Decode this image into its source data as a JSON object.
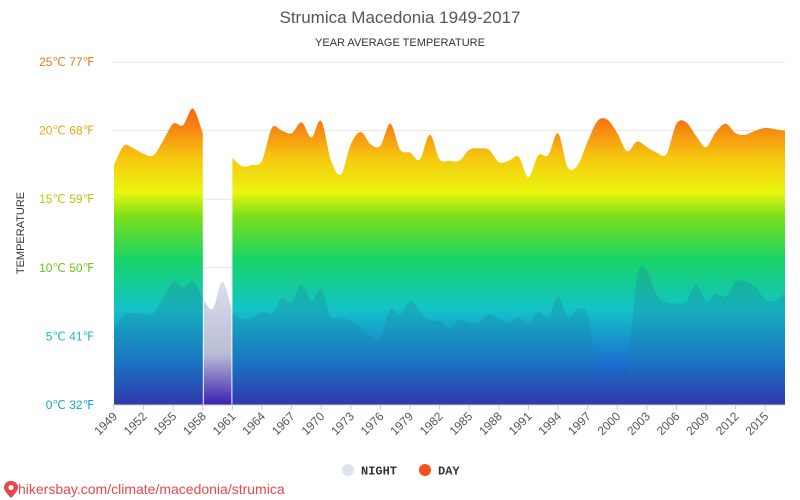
{
  "chart_data": {
    "type": "area",
    "title": "Strumica Macedonia 1949-2017",
    "subtitle": "YEAR AVERAGE TEMPERATURE",
    "ylabel": "TEMPERATURE",
    "ylim": [
      0,
      25
    ],
    "y_ticks": [
      {
        "value": 0,
        "label": "0℃ 32℉",
        "color": "#1aa3c9"
      },
      {
        "value": 5,
        "label": "5℃ 41℉",
        "color": "#1dbfb0"
      },
      {
        "value": 10,
        "label": "10℃ 50℉",
        "color": "#6cc61b"
      },
      {
        "value": 15,
        "label": "15℃ 59℉",
        "color": "#b8c40e"
      },
      {
        "value": 20,
        "label": "20℃ 68℉",
        "color": "#e8a612"
      },
      {
        "value": 25,
        "label": "25℃ 77℉",
        "color": "#f07a18"
      }
    ],
    "x_ticks": [
      "1949",
      "1952",
      "1955",
      "1958",
      "1961",
      "1964",
      "1967",
      "1970",
      "1973",
      "1976",
      "1979",
      "1982",
      "1985",
      "1988",
      "1991",
      "1994",
      "1997",
      "2000",
      "2003",
      "2006",
      "2009",
      "2012",
      "2015"
    ],
    "xlim": [
      1949,
      2017
    ],
    "grid": true,
    "legend_position": "bottom",
    "series": [
      {
        "name": "NIGHT",
        "color": "#dfe3ee",
        "x": [
          1949,
          1950,
          1951,
          1952,
          1953,
          1954,
          1955,
          1956,
          1957,
          1958,
          1959,
          1960,
          1961,
          1962,
          1963,
          1964,
          1965,
          1966,
          1967,
          1968,
          1969,
          1970,
          1971,
          1972,
          1973,
          1974,
          1975,
          1976,
          1977,
          1978,
          1979,
          1980,
          1981,
          1982,
          1983,
          1984,
          1985,
          1986,
          1987,
          1988,
          1989,
          1990,
          1991,
          1992,
          1993,
          1994,
          1995,
          1996,
          1997,
          1998,
          1999,
          2000,
          2001,
          2002,
          2003,
          2004,
          2005,
          2006,
          2007,
          2008,
          2009,
          2010,
          2011,
          2012,
          2013,
          2014,
          2015,
          2016,
          2017
        ],
        "values": [
          5.5,
          6.6,
          6.7,
          6.6,
          6.7,
          7.8,
          9.0,
          8.6,
          9.0,
          7.8,
          7.0,
          9.0,
          6.7,
          6.3,
          6.3,
          6.8,
          6.7,
          7.8,
          7.5,
          8.8,
          7.6,
          8.4,
          6.4,
          6.4,
          6.1,
          5.6,
          5.0,
          4.9,
          7.0,
          6.6,
          7.6,
          6.8,
          6.2,
          6.1,
          5.6,
          6.2,
          6.0,
          6.0,
          6.6,
          6.3,
          6.0,
          6.4,
          5.9,
          6.8,
          6.4,
          7.9,
          6.4,
          7.0,
          6.5,
          2.5,
          2.5,
          2.5,
          2.5,
          9.3,
          9.8,
          8.0,
          7.5,
          7.4,
          7.6,
          8.8,
          7.6,
          8.1,
          7.9,
          9.0,
          9.0,
          8.6,
          7.7,
          7.6,
          8.2
        ]
      },
      {
        "name": "DAY",
        "color": "#f5501e",
        "x": [
          1949,
          1950,
          1951,
          1952,
          1953,
          1954,
          1955,
          1956,
          1957,
          1958,
          1961,
          1962,
          1963,
          1964,
          1965,
          1966,
          1967,
          1968,
          1969,
          1970,
          1971,
          1972,
          1973,
          1974,
          1975,
          1976,
          1977,
          1978,
          1979,
          1980,
          1981,
          1982,
          1983,
          1984,
          1985,
          1986,
          1987,
          1988,
          1989,
          1990,
          1991,
          1992,
          1993,
          1994,
          1995,
          1996,
          1997,
          1998,
          1999,
          2000,
          2001,
          2002,
          2003,
          2004,
          2005,
          2006,
          2007,
          2008,
          2009,
          2010,
          2011,
          2012,
          2013,
          2014,
          2015,
          2016,
          2017
        ],
        "values": [
          17.5,
          18.9,
          18.7,
          18.3,
          18.2,
          19.3,
          20.5,
          20.4,
          21.6,
          19.8,
          18.0,
          17.4,
          17.5,
          17.8,
          20.2,
          20.0,
          19.8,
          20.6,
          19.5,
          20.7,
          17.8,
          16.8,
          19.0,
          19.9,
          19.0,
          18.9,
          20.5,
          18.6,
          18.4,
          17.9,
          19.7,
          17.9,
          17.8,
          17.8,
          18.6,
          18.7,
          18.6,
          17.7,
          17.8,
          18.1,
          16.6,
          18.2,
          18.2,
          19.8,
          17.3,
          17.5,
          19.2,
          20.7,
          20.8,
          19.8,
          18.5,
          19.2,
          18.8,
          18.4,
          18.3,
          20.5,
          20.6,
          19.6,
          18.8,
          19.9,
          20.5,
          19.8,
          19.7,
          20.0,
          20.2,
          20.1,
          20.0
        ]
      }
    ]
  },
  "legend": {
    "items": [
      {
        "label": "NIGHT",
        "color": "#dfe3ee"
      },
      {
        "label": "DAY",
        "color": "#f5501e"
      }
    ]
  },
  "source": {
    "text": "hikersbay.com/climate/macedonia/strumica",
    "pin_color": "#e8474b"
  }
}
